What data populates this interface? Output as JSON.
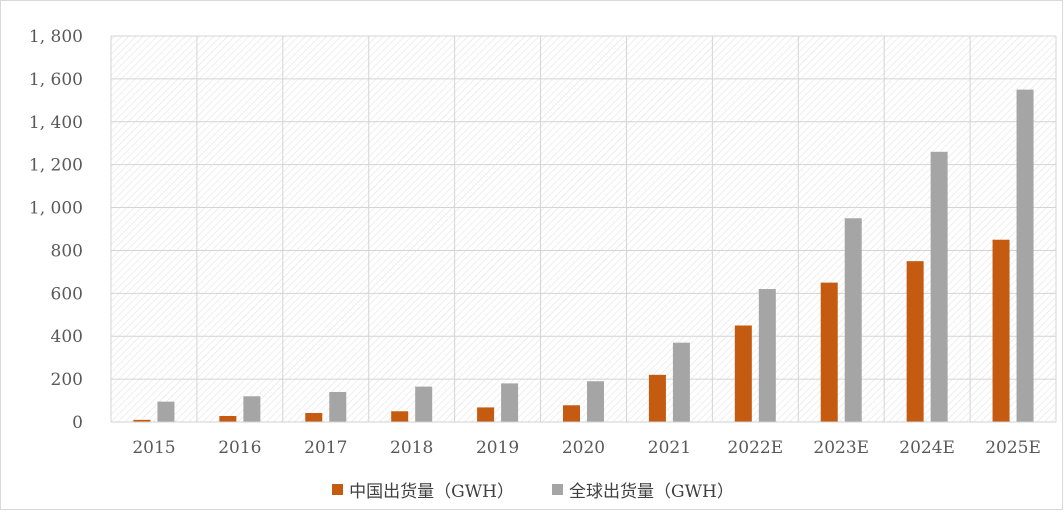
{
  "chart_data": {
    "type": "bar",
    "categories": [
      "2015",
      "2016",
      "2017",
      "2018",
      "2019",
      "2020",
      "2021",
      "2022E",
      "2023E",
      "2024E",
      "2025E"
    ],
    "series": [
      {
        "name": "中国出货量（GWH）",
        "color": "#c55a11",
        "values": [
          10,
          28,
          42,
          50,
          68,
          78,
          220,
          450,
          650,
          750,
          850
        ]
      },
      {
        "name": "全球出货量（GWH）",
        "color": "#a5a5a5",
        "values": [
          95,
          120,
          140,
          165,
          180,
          190,
          370,
          620,
          950,
          1260,
          1550
        ]
      }
    ],
    "ylim": [
      0,
      1800
    ],
    "yticks": [
      0,
      200,
      400,
      600,
      800,
      1000,
      1200,
      1400,
      1600,
      1800
    ],
    "ytick_labels": [
      "0",
      "200",
      "400",
      "600",
      "800",
      "1, 000",
      "1, 200",
      "1, 400",
      "1, 600",
      "1, 800"
    ],
    "grid": true,
    "legend_position": "bottom"
  }
}
